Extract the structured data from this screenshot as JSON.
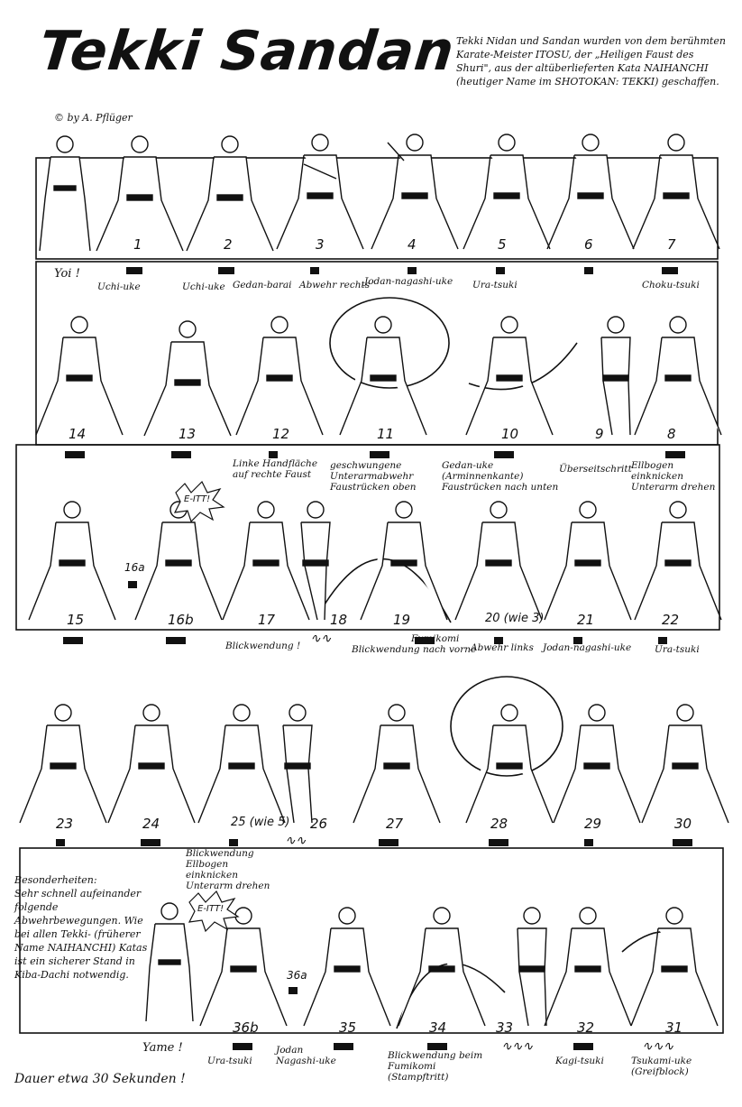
{
  "title": "Tekki Sandan",
  "copyright": "© by A. Pflüger",
  "intro": "Tekki Nidan und Sandan wurden von dem berühmten Karate-Meister ITOSU, der „Heiligen Faust des Shuri\", aus der altüberlieferten Kata NAIHANCHI (heutiger Name im SHOTOKAN: TEKKI) geschaffen.",
  "rows": [
    {
      "numbers": [
        "1",
        "2",
        "3",
        "4",
        "5",
        "6",
        "7"
      ],
      "labels": [
        "Yoi !",
        "Uchi-uke",
        "Uchi-uke",
        "Gedan-barai",
        "Abwehr rechts",
        "Jodan-nagashi-uke",
        "Ura-tsuki",
        "Choku-tsuki"
      ]
    },
    {
      "numbers": [
        "14",
        "13",
        "12",
        "11",
        "10",
        "9",
        "8"
      ],
      "labels": [
        "Linke Handfläche auf rechte Faust",
        "geschwungene Unterarmabwehr Faustrücken oben",
        "Gedan-uke (Arminnenkante) Faustrücken nach unten",
        "Überseitschritt",
        "Ellbogen einknicken Unterarm drehen"
      ]
    },
    {
      "numbers": [
        "15",
        "16a",
        "16b",
        "17",
        "18",
        "19",
        "20 (wie 3)",
        "21",
        "22"
      ],
      "kiai": "E-ITT!",
      "labels": [
        "Blickwendung !",
        "Fumikomi",
        "Blickwendung nach vorne",
        "Abwehr links",
        "Jodan-nagashi-uke",
        "Ura-tsuki"
      ]
    },
    {
      "numbers": [
        "23",
        "24",
        "25 (wie 5)",
        "26",
        "27",
        "28",
        "29",
        "30"
      ],
      "labels": [
        "Blickwendung Ellbogen einknicken Unterarm drehen"
      ]
    },
    {
      "numbers": [
        "36b",
        "36a",
        "35",
        "34",
        "33",
        "32",
        "31"
      ],
      "kiai": "E-ITT!",
      "labels": [
        "Yame !",
        "Ura-tsuki",
        "Jodan Nagashi-uke",
        "Blickwendung beim Fumikomi (Stampftritt)",
        "Kagi-tsuki",
        "Tsukami-uke (Greifblock)"
      ]
    }
  ],
  "notes": {
    "heading": "Besonderheiten:",
    "text": "Sehr schnell aufeinander folgende Abwehrbewegungen. Wie bei allen Tekki- (früherer Name NAIHANCHI) Katas ist ein sicherer Stand in Kiba-Dachi notwendig."
  },
  "duration": "Dauer etwa 30 Sekunden !"
}
